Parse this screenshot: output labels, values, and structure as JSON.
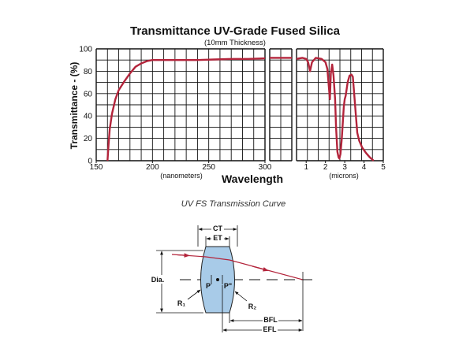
{
  "chart_data": {
    "type": "line",
    "title": "Transmittance UV-Grade Fused Silica",
    "subtitle": "(10mm Thickness)",
    "ylabel": "Transmittance - (%)",
    "xlabel": "Wavelength",
    "ylim": [
      0,
      100
    ],
    "y_ticks": [
      "0",
      "20",
      "40",
      "60",
      "80",
      "100"
    ],
    "grid": true,
    "line_color": "#b3243b",
    "panels": [
      {
        "unit_label": "(nanometers)",
        "xlim": [
          150,
          300
        ],
        "x_ticks": [
          "150",
          "200",
          "250",
          "300"
        ],
        "series": [
          {
            "x": [
              160,
              161,
              162,
              164,
              167,
              170,
              175,
              180,
              185,
              190,
              195,
              200,
              210,
              225,
              240,
              255,
              270,
              285,
              300
            ],
            "y": [
              0,
              15,
              28,
              42,
              55,
              63,
              71,
              78,
              84,
              87,
              89,
              90,
              90,
              90,
              90,
              90.5,
              91,
              91,
              91.5
            ]
          }
        ]
      },
      {
        "unit_label": "",
        "xlim": [
          300,
          500
        ],
        "x_ticks": [],
        "series": [
          {
            "x": [
              300,
              400,
              500
            ],
            "y": [
              92,
              92,
              92
            ]
          }
        ]
      },
      {
        "unit_label": "(microns)",
        "xlim": [
          0.5,
          5
        ],
        "x_ticks": [
          "1",
          "2",
          "3",
          "4",
          "5"
        ],
        "series": [
          {
            "x": [
              0.5,
              0.8,
              1.0,
              1.1,
              1.2,
              1.3,
              1.5,
              1.8,
              2.0,
              2.1,
              2.18,
              2.23,
              2.28,
              2.35,
              2.42,
              2.5,
              2.55,
              2.62,
              2.68,
              2.72,
              2.78,
              2.85,
              2.95,
              3.0,
              3.05,
              3.15,
              3.25,
              3.35,
              3.42,
              3.5,
              3.58,
              3.65,
              3.75,
              3.9,
              4.1,
              4.3,
              4.5
            ],
            "y": [
              91,
              92,
              91,
              88,
              80,
              88,
              92,
              91,
              88,
              82,
              65,
              55,
              78,
              86,
              76,
              55,
              30,
              8,
              3,
              2,
              6,
              20,
              48,
              55,
              58,
              70,
              76,
              77,
              75,
              58,
              40,
              25,
              18,
              12,
              7,
              3,
              0
            ]
          }
        ]
      }
    ]
  },
  "caption": "UV FS Transmission Curve",
  "diagram": {
    "ct_label": "CT",
    "et_label": "ET",
    "dia_label": "Dia.",
    "r1_label": "R₁",
    "r2_label": "R₂",
    "p_label": "P",
    "p2_label": "P\"",
    "bfl_label": "BFL",
    "efl_label": "EFL",
    "lens_color": "#a8cbe8",
    "ray_color": "#b3243b"
  }
}
